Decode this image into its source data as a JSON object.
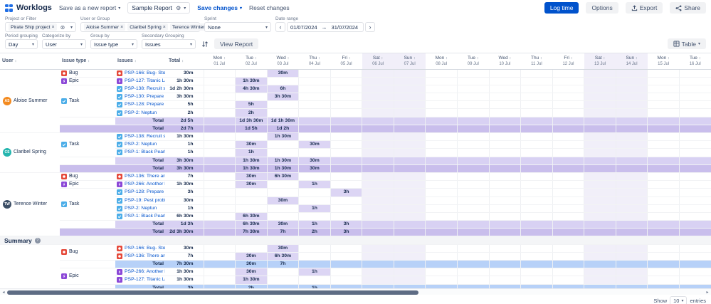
{
  "app": {
    "name": "Worklogs",
    "accent_color": "#0052cc"
  },
  "toolbar": {
    "save_as_new_report": "Save as a new report",
    "report_selector": "Sample Report",
    "save_changes": "Save changes",
    "reset_changes": "Reset changes",
    "log_time": "Log time",
    "options": "Options",
    "export": "Export",
    "share": "Share"
  },
  "filters": {
    "project": {
      "label": "Project or Filter",
      "chips": [
        "Pirate Ship project"
      ]
    },
    "user_group": {
      "label": "User or Group",
      "chips": [
        "Aloise Summer",
        "Claribel Spring",
        "Terence Winter"
      ]
    },
    "sprint": {
      "label": "Sprint",
      "value": "None"
    },
    "date_range": {
      "label": "Date range",
      "from": "01/07/2024",
      "to": "31/07/2024"
    },
    "period_grouping": {
      "label": "Period grouping",
      "value": "Day"
    },
    "categorize_by": {
      "label": "Categorize by",
      "value": "User"
    },
    "group_by": {
      "label": "Group by",
      "value": "Issue type"
    },
    "secondary_grouping": {
      "label": "Secondary Grouping",
      "value": "Issues"
    },
    "view_report_label": "View Report",
    "view_mode": "Table"
  },
  "table": {
    "fixed_headers": [
      "User",
      "Issue type",
      "Issues",
      "Total"
    ],
    "date_headers": [
      {
        "day": "Mon",
        "date": "01 Jul",
        "weekend": false
      },
      {
        "day": "Tue",
        "date": "02 Jul",
        "weekend": false
      },
      {
        "day": "Wed",
        "date": "03 Jul",
        "weekend": false
      },
      {
        "day": "Thu",
        "date": "04 Jul",
        "weekend": false
      },
      {
        "day": "Fri",
        "date": "05 Jul",
        "weekend": false
      },
      {
        "day": "Sat",
        "date": "06 Jul",
        "weekend": true
      },
      {
        "day": "Sun",
        "date": "07 Jul",
        "weekend": true
      },
      {
        "day": "Mon",
        "date": "08 Jul",
        "weekend": false
      },
      {
        "day": "Tue",
        "date": "09 Jul",
        "weekend": false
      },
      {
        "day": "Wed",
        "date": "10 Jul",
        "weekend": false
      },
      {
        "day": "Thu",
        "date": "11 Jul",
        "weekend": false
      },
      {
        "day": "Fri",
        "date": "12 Jul",
        "weekend": false
      },
      {
        "day": "Sat",
        "date": "13 Jul",
        "weekend": true
      },
      {
        "day": "Sun",
        "date": "14 Jul",
        "weekend": true
      },
      {
        "day": "Mon",
        "date": "15 Jul",
        "weekend": false
      },
      {
        "day": "Tue",
        "date": "16 Jul",
        "weekend": false
      }
    ],
    "total_row_label": "Total",
    "issue_type_colors": {
      "Bug": "#e5493a",
      "Epic": "#8b47d7",
      "Task": "#4bade8"
    },
    "colors": {
      "value_cell": "#dcd5f4",
      "weekend_tint": "#f1eff9",
      "group_total_band": "#d8d1f3",
      "user_total_band": "#c9beec",
      "summary_total_band": "#b7d1f8"
    },
    "sections": [
      {
        "kind": "user",
        "name": "Aloise Summer",
        "initials": "AS",
        "avatar_color": "#f38a1f",
        "groups": [
          {
            "type": "Bug",
            "issues": [
              {
                "label": "PSP-166: Bug- Stolen ru...",
                "total": "30m",
                "days": {
                  "2": "30m"
                }
              }
            ]
          },
          {
            "type": "Epic",
            "issues": [
              {
                "label": "PSP-127: Titanic Launch",
                "total": "1h 30m",
                "days": {
                  "1": "1h 30m"
                }
              }
            ]
          },
          {
            "type": "Task",
            "issues": [
              {
                "label": "PSP-138: Recruit secur...",
                "total": "1d 2h 30m",
                "days": {
                  "1": "4h 30m",
                  "2": "6h"
                }
              },
              {
                "label": "PSP-130: Prepare ship t...",
                "total": "3h 30m",
                "days": {
                  "2": "3h 30m"
                }
              },
              {
                "label": "PSP-128: Prepare men...",
                "total": "5h",
                "days": {
                  "1": "5h"
                }
              },
              {
                "label": "PSP-2: Neptun",
                "total": "2h",
                "days": {
                  "1": "2h"
                }
              }
            ],
            "group_total": {
              "total": "2d 5h",
              "days": {
                "1": "1d 3h 30m",
                "2": "1d 1h 30m"
              }
            }
          }
        ],
        "user_total": {
          "total": "2d 7h",
          "days": {
            "1": "1d 5h",
            "2": "1d 2h"
          }
        }
      },
      {
        "kind": "user",
        "name": "Claribel Spring",
        "initials": "CS",
        "avatar_color": "#25b5ae",
        "groups": [
          {
            "type": "Task",
            "issues": [
              {
                "label": "PSP-138: Recruit secur...",
                "total": "1h 30m",
                "days": {
                  "2": "1h 30m"
                }
              },
              {
                "label": "PSP-2: Neptun",
                "total": "1h",
                "days": {
                  "1": "30m",
                  "3": "30m"
                }
              },
              {
                "label": "PSP-1: Black Pearl",
                "total": "1h",
                "days": {
                  "1": "1h"
                }
              }
            ],
            "group_total": {
              "total": "3h 30m",
              "days": {
                "1": "1h 30m",
                "2": "1h 30m",
                "3": "30m"
              }
            }
          }
        ],
        "user_total": {
          "total": "3h 30m",
          "days": {
            "1": "1h 30m",
            "2": "1h 30m",
            "3": "30m"
          }
        }
      },
      {
        "kind": "user",
        "name": "Terence Winter",
        "initials": "TW",
        "avatar_color": "#3d4f66",
        "groups": [
          {
            "type": "Bug",
            "issues": [
              {
                "label": "PSP-136: There are no ...",
                "total": "7h",
                "days": {
                  "1": "30m",
                  "2": "6h 30m"
                }
              }
            ]
          },
          {
            "type": "Epic",
            "issues": [
              {
                "label": "PSP-266: Another Epic",
                "total": "1h 30m",
                "days": {
                  "1": "30m",
                  "3": "1h"
                }
              }
            ]
          },
          {
            "type": "Task",
            "issues": [
              {
                "label": "PSP-128: Prepare men...",
                "total": "3h",
                "days": {
                  "4": "3h"
                }
              },
              {
                "label": "PSP-19: Pest problem...",
                "total": "30m",
                "days": {
                  "2": "30m"
                }
              },
              {
                "label": "PSP-2: Neptun",
                "total": "1h",
                "days": {
                  "3": "1h"
                }
              },
              {
                "label": "PSP-1: Black Pearl",
                "total": "6h 30m",
                "days": {
                  "1": "6h 30m"
                }
              }
            ],
            "group_total": {
              "total": "1d 3h",
              "days": {
                "1": "6h 30m",
                "2": "30m",
                "3": "1h",
                "4": "3h"
              }
            }
          }
        ],
        "user_total": {
          "total": "2d 3h 30m",
          "days": {
            "1": "7h 30m",
            "2": "7h",
            "3": "2h",
            "4": "3h"
          }
        }
      },
      {
        "kind": "summary",
        "title": "Summary",
        "groups": [
          {
            "type": "Bug",
            "issues": [
              {
                "label": "PSP-166: Bug- Stolen ru...",
                "total": "30m",
                "days": {
                  "2": "30m"
                }
              },
              {
                "label": "PSP-136: There are no ...",
                "total": "7h",
                "days": {
                  "1": "30m",
                  "2": "6h 30m"
                }
              }
            ],
            "group_total": {
              "total": "7h 30m",
              "days": {
                "1": "30m",
                "2": "7h"
              }
            }
          },
          {
            "type": "Epic",
            "issues": [
              {
                "label": "PSP-266: Another Epic",
                "total": "1h 30m",
                "days": {
                  "1": "30m",
                  "3": "1h"
                }
              },
              {
                "label": "PSP-127: Titanic Launch",
                "total": "1h 30m",
                "days": {
                  "1": "1h 30m"
                }
              }
            ],
            "group_total": {
              "total": "3h",
              "days": {
                "1": "2h",
                "3": "1h"
              }
            }
          }
        ]
      }
    ]
  },
  "pagination": {
    "show_label": "Show",
    "page_size": "10",
    "entries_label": "entries"
  }
}
